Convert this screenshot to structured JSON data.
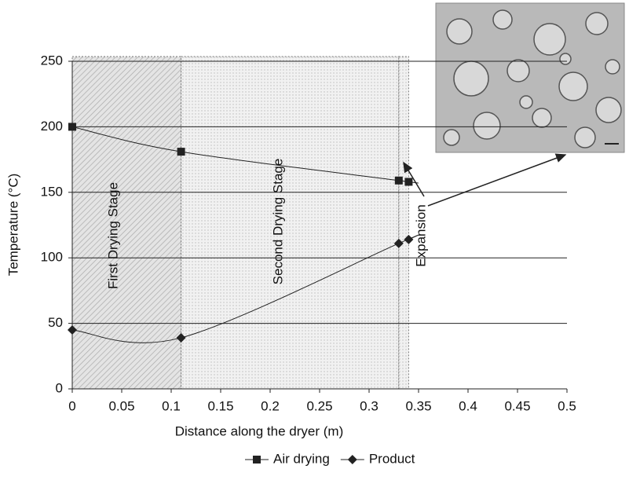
{
  "chart_data": {
    "type": "line",
    "x_label": "Distance along the dryer (m)",
    "y_label": "Temperature (°C)",
    "x": [
      0,
      0.11,
      0.33,
      0.34
    ],
    "series": [
      {
        "name": "Air drying",
        "color": "#222222",
        "marker": "square",
        "values": [
          200,
          181,
          159,
          158
        ]
      },
      {
        "name": "Product",
        "color": "#222222",
        "marker": "diamond",
        "values": [
          45,
          39,
          111,
          114
        ]
      }
    ],
    "xlim": [
      0,
      0.5
    ],
    "xticks": [
      0,
      0.05,
      0.1,
      0.15,
      0.2,
      0.25,
      0.3,
      0.35,
      0.4,
      0.45,
      0.5
    ],
    "ylim": [
      0,
      250
    ],
    "yticks": [
      0,
      50,
      100,
      150,
      200,
      250
    ],
    "grid": true,
    "smooth": true,
    "legend": "bottom",
    "stages": [
      {
        "label": "First Drying Stage",
        "x": [
          0,
          0.11
        ]
      },
      {
        "label": "Second Drying Stage",
        "x": [
          0.11,
          0.33
        ]
      },
      {
        "label": "Expansion",
        "x": [
          0.33,
          0.34
        ]
      }
    ]
  }
}
